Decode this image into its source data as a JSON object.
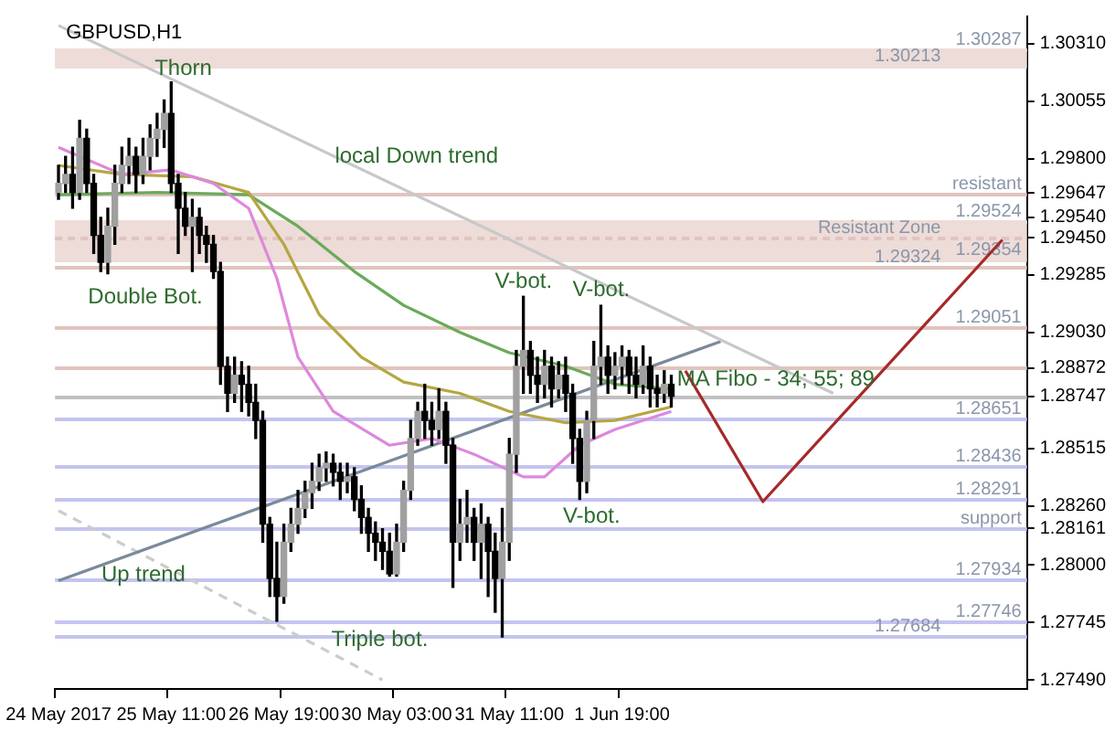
{
  "chart_data": {
    "type": "candlestick",
    "title": "GBPUSD,H1",
    "categories": [
      "24 May 2017",
      null,
      null,
      null,
      null,
      null,
      null,
      null,
      null,
      null,
      null,
      null,
      null,
      null,
      null,
      null,
      "25 May 11:00",
      null,
      null,
      null,
      null,
      null,
      null,
      null,
      null,
      null,
      null,
      null,
      null,
      null,
      null,
      null,
      "26 May 19:00",
      null,
      null,
      null,
      null,
      null,
      null,
      null,
      null,
      null,
      null,
      null,
      null,
      null,
      null,
      null,
      "30 May 03:00",
      null,
      null,
      null,
      null,
      null,
      null,
      null,
      null,
      null,
      null,
      null,
      null,
      null,
      null,
      null,
      "31 May 11:00",
      null,
      null,
      null,
      null,
      null,
      null,
      null,
      null,
      null,
      null,
      null,
      null,
      null,
      null,
      null,
      "1 Jun 19:00",
      null,
      null,
      null,
      null,
      null,
      null,
      null,
      null,
      null,
      null,
      null,
      null,
      null,
      null,
      null,
      null,
      null,
      null,
      null,
      null,
      null,
      null,
      null,
      null,
      null,
      null,
      null,
      null,
      null,
      null,
      null,
      null,
      null,
      null,
      null,
      null,
      null,
      null,
      null,
      null,
      null,
      null,
      null,
      null,
      null,
      null,
      null,
      null,
      null,
      null,
      null,
      null,
      null,
      null,
      null,
      null,
      null
    ],
    "ohlc": [
      [
        1.2965,
        1.2977,
        1.2962,
        1.2969
      ],
      [
        1.2969,
        1.2981,
        1.2965,
        1.2973
      ],
      [
        1.2973,
        1.2985,
        1.2958,
        1.2965
      ],
      [
        1.2965,
        1.2997,
        1.2962,
        1.2989
      ],
      [
        1.2989,
        1.2993,
        1.2965,
        1.2969
      ],
      [
        1.2969,
        1.2973,
        1.2938,
        1.2946
      ],
      [
        1.2946,
        1.2954,
        1.293,
        1.2934
      ],
      [
        1.2934,
        1.2958,
        1.2929,
        1.295
      ],
      [
        1.295,
        1.2977,
        1.2942,
        1.2969
      ],
      [
        1.2969,
        1.2985,
        1.2965,
        1.2977
      ],
      [
        1.2977,
        1.2989,
        1.2969,
        1.2981
      ],
      [
        1.2981,
        1.2985,
        1.2965,
        1.2973
      ],
      [
        1.2973,
        1.2989,
        1.2969,
        1.2981
      ],
      [
        1.2981,
        1.2995,
        1.2975,
        1.2989
      ],
      [
        1.2989,
        1.3,
        1.2981,
        1.2993
      ],
      [
        1.2993,
        1.3006,
        1.2985,
        1.3
      ],
      [
        1.3,
        1.3014,
        1.2965,
        1.2969
      ],
      [
        1.2969,
        1.2973,
        1.2938,
        1.2958
      ],
      [
        1.2958,
        1.2965,
        1.2946,
        1.295
      ],
      [
        1.295,
        1.2962,
        1.293,
        1.2954
      ],
      [
        1.2954,
        1.2958,
        1.2938,
        1.2946
      ],
      [
        1.2946,
        1.295,
        1.2934,
        1.2942
      ],
      [
        1.2942,
        1.2946,
        1.2927,
        1.293
      ],
      [
        1.293,
        1.2934,
        1.288,
        1.2888
      ],
      [
        1.2888,
        1.2892,
        1.2868,
        1.2876
      ],
      [
        1.2876,
        1.2892,
        1.2872,
        1.2884
      ],
      [
        1.2884,
        1.289,
        1.2868,
        1.288
      ],
      [
        1.288,
        1.2888,
        1.2866,
        1.2872
      ],
      [
        1.2872,
        1.288,
        1.2856,
        1.2864
      ],
      [
        1.2864,
        1.2868,
        1.281,
        1.2818
      ],
      [
        1.2818,
        1.2821,
        1.2786,
        1.2794
      ],
      [
        1.2794,
        1.281,
        1.2775,
        1.2786
      ],
      [
        1.2786,
        1.2818,
        1.2783,
        1.281
      ],
      [
        1.281,
        1.2825,
        1.2806,
        1.2818
      ],
      [
        1.2818,
        1.2833,
        1.2814,
        1.2825
      ],
      [
        1.2825,
        1.2837,
        1.2821,
        1.2832
      ],
      [
        1.2832,
        1.2845,
        1.2825,
        1.2837
      ],
      [
        1.2837,
        1.2849,
        1.2833,
        1.2843
      ],
      [
        1.2843,
        1.285,
        1.2837,
        1.2845
      ],
      [
        1.2845,
        1.2849,
        1.2835,
        1.2841
      ],
      [
        1.2841,
        1.2845,
        1.2829,
        1.2837
      ],
      [
        1.2837,
        1.2845,
        1.2832,
        1.2839
      ],
      [
        1.2839,
        1.2843,
        1.2824,
        1.2829
      ],
      [
        1.2829,
        1.2835,
        1.2814,
        1.2821
      ],
      [
        1.2821,
        1.2825,
        1.2806,
        1.2814
      ],
      [
        1.2814,
        1.2819,
        1.2802,
        1.281
      ],
      [
        1.281,
        1.2816,
        1.2798,
        1.2806
      ],
      [
        1.2806,
        1.2814,
        1.2795,
        1.2796
      ],
      [
        1.2796,
        1.2818,
        1.2795,
        1.281
      ],
      [
        1.281,
        1.2837,
        1.2806,
        1.2833
      ],
      [
        1.2833,
        1.2864,
        1.2829,
        1.2856
      ],
      [
        1.2856,
        1.2872,
        1.2853,
        1.2868
      ],
      [
        1.2868,
        1.288,
        1.2856,
        1.2864
      ],
      [
        1.2864,
        1.2872,
        1.2853,
        1.286
      ],
      [
        1.286,
        1.2878,
        1.2856,
        1.2868
      ],
      [
        1.2868,
        1.2872,
        1.2845,
        1.2853
      ],
      [
        1.2853,
        1.2856,
        1.279,
        1.281
      ],
      [
        1.281,
        1.2829,
        1.2802,
        1.2818
      ],
      [
        1.2818,
        1.2833,
        1.281,
        1.2821
      ],
      [
        1.2821,
        1.2825,
        1.2802,
        1.281
      ],
      [
        1.281,
        1.2827,
        1.2794,
        1.2818
      ],
      [
        1.2818,
        1.2821,
        1.2786,
        1.2806
      ],
      [
        1.2806,
        1.2814,
        1.2779,
        1.2794
      ],
      [
        1.2794,
        1.2825,
        1.2768,
        1.281
      ],
      [
        1.281,
        1.2856,
        1.2802,
        1.2849
      ],
      [
        1.2849,
        1.2895,
        1.2841,
        1.2888
      ],
      [
        1.2888,
        1.2919,
        1.2876,
        1.2895
      ],
      [
        1.2895,
        1.2899,
        1.2876,
        1.2884
      ],
      [
        1.2884,
        1.2892,
        1.2872,
        1.288
      ],
      [
        1.288,
        1.2895,
        1.2874,
        1.2888
      ],
      [
        1.2888,
        1.2892,
        1.287,
        1.2878
      ],
      [
        1.2878,
        1.289,
        1.2874,
        1.2884
      ],
      [
        1.2884,
        1.2892,
        1.2868,
        1.2876
      ],
      [
        1.2876,
        1.288,
        1.2845,
        1.2856
      ],
      [
        1.2856,
        1.286,
        1.2829,
        1.2837
      ],
      [
        1.2837,
        1.2868,
        1.2832,
        1.2864
      ],
      [
        1.2864,
        1.2899,
        1.2856,
        1.2888
      ],
      [
        1.2888,
        1.2915,
        1.288,
        1.2892
      ],
      [
        1.2892,
        1.2897,
        1.2876,
        1.2884
      ],
      [
        1.2884,
        1.2894,
        1.2878,
        1.2888
      ],
      [
        1.2888,
        1.2897,
        1.288,
        1.2892
      ],
      [
        1.2892,
        1.2895,
        1.2876,
        1.2884
      ],
      [
        1.2884,
        1.2892,
        1.2874,
        1.288
      ],
      [
        1.288,
        1.2897,
        1.2876,
        1.2888
      ],
      [
        1.2888,
        1.2892,
        1.287,
        1.2878
      ],
      [
        1.2878,
        1.2884,
        1.287,
        1.2876
      ],
      [
        1.2876,
        1.2886,
        1.2872,
        1.288
      ],
      [
        1.288,
        1.2884,
        1.287,
        1.28747
      ],
      null,
      null,
      null,
      null,
      null,
      null,
      null,
      null,
      null,
      null,
      null,
      null,
      null,
      null,
      null,
      null,
      null,
      null,
      null,
      null,
      null,
      null,
      null,
      null,
      null,
      null,
      null,
      null,
      null,
      null,
      null,
      null,
      null,
      null,
      null,
      null,
      null,
      null,
      null,
      null,
      null,
      null,
      null,
      null,
      null,
      null,
      null,
      null,
      null,
      null
    ],
    "series": [
      {
        "type": "line",
        "color": "#dd88dd",
        "values": [
          1.2985,
          null,
          null,
          null,
          null,
          null,
          null,
          null,
          null,
          1.2973,
          null,
          null,
          null,
          null,
          null,
          null,
          1.2975,
          null,
          null,
          null,
          null,
          null,
          1.2969,
          null,
          null,
          null,
          null,
          1.2958,
          null,
          null,
          null,
          1.2927,
          null,
          null,
          1.2892,
          null,
          null,
          null,
          null,
          1.2868,
          null,
          null,
          null,
          null,
          null,
          null,
          null,
          1.2853,
          null,
          null,
          null,
          null,
          null,
          1.2856,
          null,
          null,
          null,
          null,
          null,
          1.2849,
          null,
          null,
          null,
          null,
          null,
          null,
          1.2839,
          null,
          null,
          1.2839,
          null,
          null,
          null,
          null,
          1.2853,
          null,
          null,
          null,
          null,
          1.286,
          null,
          null,
          null,
          null,
          null,
          null,
          null,
          1.2868,
          null,
          null,
          null,
          null,
          null,
          null,
          null,
          null,
          null,
          null,
          null,
          null,
          null,
          null,
          null,
          null,
          null,
          null,
          null,
          null,
          null,
          null,
          null,
          null,
          null,
          null,
          null,
          null,
          null,
          null,
          null,
          null,
          null,
          null,
          null,
          null,
          null,
          null,
          null,
          null,
          null,
          null,
          null,
          null,
          null,
          null,
          null,
          null,
          null,
          null
        ]
      },
      {
        "type": "line",
        "color": "#b5a642",
        "values": [
          1.2977,
          null,
          null,
          null,
          null,
          null,
          null,
          null,
          null,
          1.2973,
          null,
          null,
          null,
          null,
          null,
          null,
          null,
          null,
          null,
          1.2972,
          null,
          null,
          null,
          null,
          null,
          null,
          null,
          1.2965,
          null,
          null,
          null,
          null,
          1.2942,
          null,
          null,
          null,
          null,
          1.2911,
          null,
          null,
          null,
          null,
          null,
          1.2892,
          null,
          null,
          null,
          null,
          null,
          1.2881,
          null,
          null,
          null,
          null,
          null,
          null,
          null,
          1.2876,
          null,
          null,
          null,
          null,
          null,
          null,
          1.2868,
          null,
          null,
          null,
          null,
          null,
          null,
          null,
          1.2863,
          null,
          null,
          null,
          null,
          null,
          null,
          1.2864,
          null,
          null,
          null,
          null,
          null,
          null,
          null,
          1.287,
          null,
          null,
          null,
          null,
          null,
          null,
          null,
          null,
          null,
          null,
          null,
          null,
          null,
          null,
          null,
          null,
          null,
          null,
          null,
          null,
          null,
          null,
          null,
          null,
          null,
          null,
          null,
          null,
          null,
          null,
          null,
          null,
          null,
          null,
          null,
          null,
          null,
          null,
          null,
          null,
          null,
          null,
          null,
          null,
          null,
          null,
          null,
          null,
          null,
          null
        ]
      },
      {
        "type": "line",
        "color": "#6aaa5a",
        "values": [
          1.2964,
          null,
          null,
          null,
          null,
          null,
          null,
          null,
          null,
          null,
          null,
          null,
          null,
          null,
          1.2965,
          null,
          null,
          null,
          null,
          null,
          null,
          null,
          null,
          null,
          null,
          null,
          null,
          1.2964,
          null,
          null,
          null,
          null,
          null,
          null,
          1.295,
          null,
          null,
          null,
          null,
          null,
          null,
          null,
          1.293,
          null,
          null,
          null,
          null,
          null,
          null,
          1.2915,
          null,
          null,
          null,
          null,
          null,
          null,
          null,
          1.2903,
          null,
          null,
          null,
          null,
          null,
          null,
          1.2894,
          null,
          null,
          null,
          null,
          null,
          null,
          null,
          1.2888,
          null,
          null,
          null,
          null,
          null,
          null,
          1.288,
          null,
          null,
          null,
          null,
          null,
          null,
          null,
          1.2878,
          null,
          null,
          null,
          null,
          null,
          null,
          null,
          null,
          null,
          null,
          null,
          null,
          null,
          null,
          null,
          null,
          null,
          null,
          null,
          null,
          null,
          null,
          null,
          null,
          null,
          null,
          null,
          null,
          null,
          null,
          null,
          null,
          null,
          null,
          null,
          null,
          null,
          null,
          null,
          null,
          null,
          null,
          null,
          null,
          null,
          null,
          null,
          null,
          null,
          null
        ]
      },
      {
        "type": "line",
        "color": "#c8c8c8",
        "values": [
          1.3039,
          null,
          null,
          null,
          null,
          null,
          null,
          null,
          null,
          null,
          null,
          null,
          null,
          null,
          null,
          null,
          null,
          null,
          null,
          null,
          null,
          null,
          null,
          null,
          null,
          null,
          null,
          null,
          null,
          null,
          null,
          null,
          null,
          null,
          null,
          null,
          null,
          null,
          null,
          null,
          null,
          null,
          null,
          null,
          null,
          null,
          null,
          null,
          null,
          null,
          null,
          null,
          null,
          null,
          null,
          null,
          null,
          null,
          null,
          null,
          null,
          null,
          null,
          null,
          null,
          null,
          null,
          null,
          null,
          null,
          null,
          null,
          null,
          null,
          null,
          null,
          null,
          null,
          null,
          null,
          null,
          null,
          null,
          null,
          null,
          null,
          null,
          null,
          null,
          null,
          null,
          null,
          null,
          null,
          null,
          null,
          null,
          null,
          null,
          null,
          null,
          null,
          null,
          null,
          null,
          null,
          null,
          null,
          null,
          null,
          1.2876,
          null,
          null,
          null,
          null,
          null,
          null,
          null,
          null,
          null,
          null,
          null,
          null,
          null,
          null,
          null,
          null,
          null,
          null,
          null,
          null,
          null,
          null,
          null,
          null,
          null,
          null,
          null
        ]
      },
      {
        "type": "line",
        "color": "#7a8a9a",
        "values": [
          1.2793,
          null,
          null,
          null,
          null,
          null,
          null,
          null,
          null,
          null,
          null,
          null,
          null,
          null,
          null,
          null,
          null,
          null,
          null,
          null,
          null,
          null,
          null,
          null,
          null,
          null,
          null,
          null,
          null,
          null,
          null,
          null,
          null,
          null,
          null,
          null,
          null,
          null,
          null,
          null,
          null,
          null,
          null,
          null,
          null,
          null,
          null,
          null,
          null,
          null,
          null,
          null,
          null,
          null,
          null,
          null,
          null,
          null,
          null,
          null,
          null,
          null,
          null,
          null,
          null,
          null,
          null,
          null,
          null,
          null,
          null,
          null,
          null,
          null,
          null,
          null,
          null,
          null,
          null,
          null,
          null,
          null,
          null,
          null,
          null,
          null,
          null,
          null,
          null,
          null,
          null,
          null,
          null,
          null,
          1.2899,
          null,
          null,
          null,
          null,
          null,
          null,
          null,
          null,
          null,
          null,
          null,
          null,
          null,
          null,
          null,
          null,
          null,
          null,
          null,
          null,
          null,
          null,
          null,
          null,
          null,
          null,
          null,
          null,
          null,
          null,
          null,
          null,
          null,
          null,
          null,
          null,
          null,
          null,
          null,
          null,
          null,
          null,
          null
        ]
      },
      {
        "type": "line",
        "color": "#cccccc",
        "line_style": "dashed",
        "values": [
          1.2824,
          null,
          null,
          null,
          null,
          null,
          null,
          null,
          null,
          null,
          null,
          null,
          null,
          null,
          null,
          null,
          null,
          null,
          null,
          null,
          null,
          null,
          null,
          null,
          null,
          null,
          null,
          null,
          null,
          null,
          null,
          null,
          null,
          null,
          null,
          null,
          null,
          null,
          null,
          null,
          null,
          null,
          null,
          null,
          null,
          null,
          1.2749,
          null,
          null,
          null,
          null,
          null,
          null,
          null,
          null,
          null,
          null,
          null,
          null,
          null,
          null,
          null,
          null,
          null,
          null,
          null,
          null,
          null,
          null,
          null,
          null,
          null,
          null,
          null,
          null,
          null,
          null,
          null,
          null,
          null,
          null,
          null,
          null,
          null,
          null,
          null,
          null,
          null,
          null,
          null,
          null,
          null,
          null,
          null,
          null,
          null,
          null,
          null,
          null,
          null,
          null,
          null,
          null,
          null,
          null,
          null,
          null,
          null,
          null,
          null,
          null,
          null,
          null,
          null,
          null,
          null,
          null,
          null,
          null,
          null,
          null,
          null,
          null,
          null,
          null,
          null,
          null,
          null,
          null,
          null,
          null,
          null,
          null,
          null,
          null,
          null,
          null,
          null
        ]
      },
      {
        "type": "line",
        "color": "#a52a2a",
        "values": [
          null,
          null,
          null,
          null,
          null,
          null,
          null,
          null,
          null,
          null,
          null,
          null,
          null,
          null,
          null,
          null,
          null,
          null,
          null,
          null,
          null,
          null,
          null,
          null,
          null,
          null,
          null,
          null,
          null,
          null,
          null,
          null,
          null,
          null,
          null,
          null,
          null,
          null,
          null,
          null,
          null,
          null,
          null,
          null,
          null,
          null,
          null,
          null,
          null,
          null,
          null,
          null,
          null,
          null,
          null,
          null,
          null,
          null,
          null,
          null,
          null,
          null,
          null,
          null,
          null,
          null,
          null,
          null,
          null,
          null,
          null,
          null,
          null,
          null,
          null,
          null,
          null,
          null,
          null,
          null,
          null,
          null,
          null,
          null,
          null,
          null,
          null,
          null,
          null,
          1.2886,
          null,
          null,
          null,
          null,
          null,
          null,
          null,
          null,
          null,
          null,
          1.2828,
          null,
          null,
          null,
          null,
          null,
          null,
          null,
          null,
          null,
          null,
          null,
          null,
          null,
          null,
          null,
          null,
          null,
          null,
          null,
          null,
          null,
          null,
          null,
          null,
          null,
          null,
          null,
          null,
          null,
          null,
          null,
          null,
          null,
          1.2944,
          null,
          null,
          null
        ]
      }
    ],
    "ylim": [
      1.2745,
      1.3043
    ],
    "yticks": [
      {
        "value": 1.3031,
        "label": "1.30310"
      },
      {
        "value": 1.30055,
        "label": "1.30055"
      },
      {
        "value": 1.298,
        "label": "1.29800"
      },
      {
        "value": 1.29647,
        "label": "1.29647"
      },
      {
        "value": 1.2954,
        "label": "1.29540"
      },
      {
        "value": 1.2945,
        "label": "1.29450"
      },
      {
        "value": 1.29285,
        "label": "1.29285"
      },
      {
        "value": 1.2903,
        "label": "1.29030"
      },
      {
        "value": 1.28872,
        "label": "1.28872"
      },
      {
        "value": 1.28747,
        "label": "1.28747"
      },
      {
        "value": 1.28515,
        "label": "1.28515"
      },
      {
        "value": 1.2826,
        "label": "1.28260"
      },
      {
        "value": 1.28161,
        "label": "1.28161"
      },
      {
        "value": 1.28,
        "label": "1.28000"
      },
      {
        "value": 1.27745,
        "label": "1.27745"
      },
      {
        "value": 1.2749,
        "label": "1.27490"
      }
    ],
    "bands": [
      {
        "axis": "y",
        "from": 1.30213,
        "to": 1.30287,
        "color": "#eddcd8"
      },
      {
        "axis": "y",
        "from": 1.29354,
        "to": 1.29524,
        "color": "#eddcd8"
      }
    ],
    "ref_lines": [
      {
        "axis": "y",
        "value": 1.30287,
        "label": "1.30287",
        "color": "#eddcd8"
      },
      {
        "axis": "y",
        "value": 1.30213,
        "label": "1.30213",
        "color": "#eddcd8"
      },
      {
        "axis": "y",
        "value": 1.29647,
        "label": "resistant",
        "color": "#e0c4be"
      },
      {
        "axis": "y",
        "value": 1.29524,
        "label": "1.29524",
        "color": "#eddcd8"
      },
      {
        "axis": "y",
        "value": 1.2945,
        "label": "Resistant Zone",
        "color": "#e0c4be",
        "line_style": "dashed"
      },
      {
        "axis": "y",
        "value": 1.29354,
        "label": "1.29354",
        "color": "#eddcd8"
      },
      {
        "axis": "y",
        "value": 1.29324,
        "label": "1.29324",
        "color": "#e0c4be"
      },
      {
        "axis": "y",
        "value": 1.29051,
        "label": "1.29051",
        "color": "#e0c4be"
      },
      {
        "axis": "y",
        "value": 1.28872,
        "label": null,
        "color": "#e0c4be"
      },
      {
        "axis": "y",
        "value": 1.28747,
        "label": null,
        "color": "#c0c0c0"
      },
      {
        "axis": "y",
        "value": 1.28651,
        "label": "1.28651",
        "color": "#c4c4f0"
      },
      {
        "axis": "y",
        "value": 1.28436,
        "label": "1.28436",
        "color": "#c4c4f0"
      },
      {
        "axis": "y",
        "value": 1.28291,
        "label": "1.28291",
        "color": "#c4c4f0"
      },
      {
        "axis": "y",
        "value": 1.28161,
        "label": "support",
        "color": "#c4c4f0"
      },
      {
        "axis": "y",
        "value": 1.27934,
        "label": "1.27934",
        "color": "#c4c4f0"
      },
      {
        "axis": "y",
        "value": 1.27746,
        "label": "1.27746",
        "color": "#c4c4f0"
      },
      {
        "axis": "y",
        "value": 1.27684,
        "label": "1.27684",
        "color": "#c4c4f0"
      }
    ],
    "annotations": [
      "Thorn",
      "Double Bot.",
      "local Down trend",
      "V-bot.",
      "V-bot.",
      "V-bot.",
      "Up trend",
      "Triple bot.",
      "MA Fibo - 34; 55; 89"
    ]
  }
}
